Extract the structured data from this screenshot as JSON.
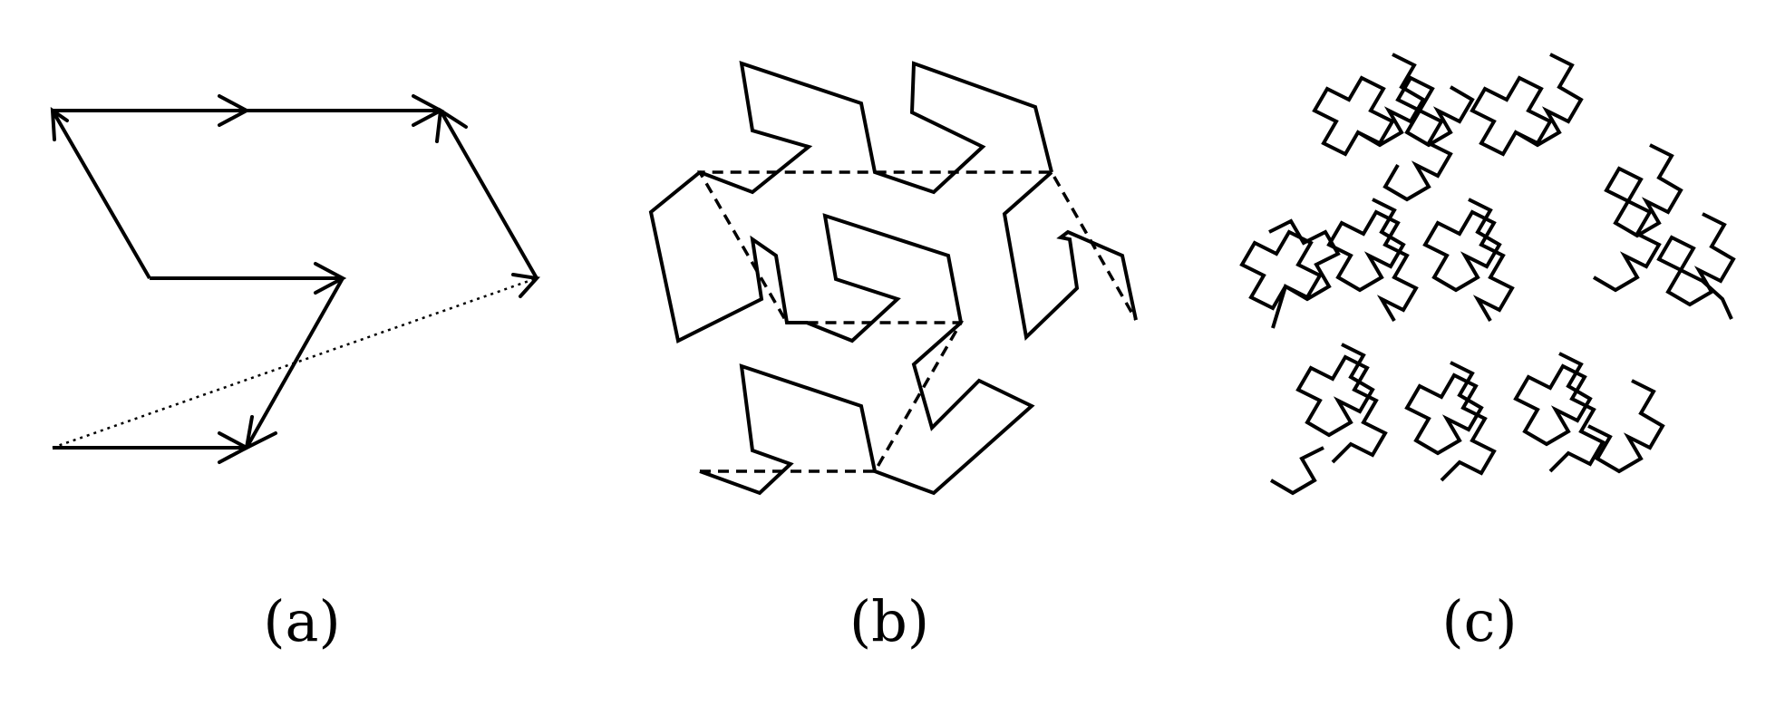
{
  "figure": {
    "panels": [
      {
        "id": "a",
        "caption": "(a)"
      },
      {
        "id": "b",
        "caption": "(b)"
      },
      {
        "id": "c",
        "caption": "(c)"
      }
    ]
  }
}
